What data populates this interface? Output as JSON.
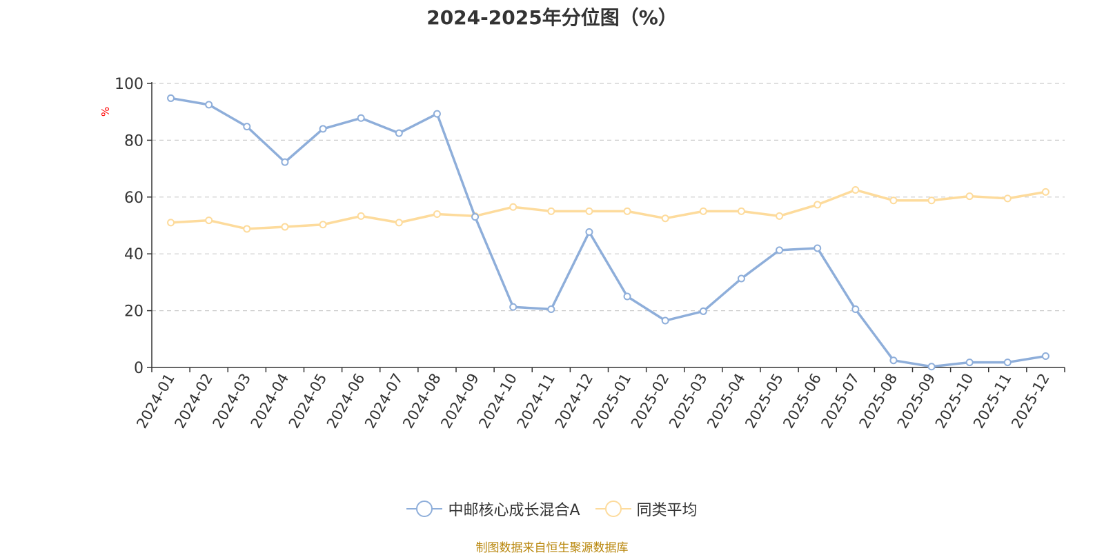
{
  "chart_data": {
    "type": "line",
    "title": "2024-2025年分位图（%）",
    "ylabel": "%",
    "ylim": [
      0,
      100
    ],
    "yticks": [
      0,
      20,
      40,
      60,
      80,
      100
    ],
    "grid": true,
    "legend_position": "bottom",
    "categories": [
      "2024-01",
      "2024-02",
      "2024-03",
      "2024-04",
      "2024-05",
      "2024-06",
      "2024-07",
      "2024-08",
      "2024-09",
      "2024-10",
      "2024-11",
      "2024-12",
      "2025-01",
      "2025-02",
      "2025-03",
      "2025-04",
      "2025-05",
      "2025-06",
      "2025-07",
      "2025-08",
      "2025-09",
      "2025-10",
      "2025-11",
      "2025-12"
    ],
    "series": [
      {
        "name": "中邮核心成长混合A",
        "color": "#8EAEDA",
        "values": [
          94.8,
          92.5,
          84.8,
          72.3,
          84.0,
          87.8,
          82.5,
          89.3,
          53.0,
          21.3,
          20.5,
          47.7,
          25.0,
          16.5,
          19.8,
          31.3,
          41.3,
          42.0,
          20.5,
          2.5,
          0.3,
          1.8,
          1.8,
          4.0
        ]
      },
      {
        "name": "同类平均",
        "color": "#FDDB9C",
        "values": [
          51.0,
          51.8,
          48.8,
          49.5,
          50.3,
          53.3,
          51.0,
          54.0,
          53.3,
          56.5,
          55.0,
          55.0,
          55.0,
          52.5,
          55.0,
          55.0,
          53.3,
          57.3,
          62.5,
          58.8,
          58.8,
          60.3,
          59.5,
          61.8
        ]
      }
    ]
  },
  "source": "制图数据来自恒生聚源数据库",
  "colors": {
    "axis": "#333333",
    "grid": "#cccccc",
    "unit_label": "#ff0000",
    "source_text": "#b8860b"
  }
}
